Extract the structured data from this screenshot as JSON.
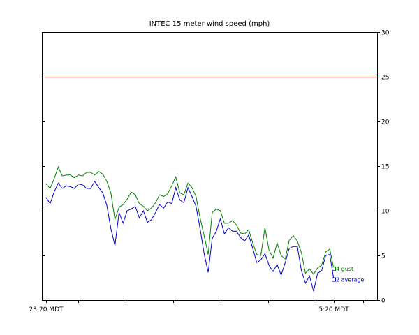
{
  "chart_data": {
    "type": "line",
    "title": "INTEC 15 meter wind speed (mph)",
    "ylim": [
      0,
      30
    ],
    "yticks": [
      "0",
      "5",
      "10",
      "15",
      "20",
      "25",
      "30"
    ],
    "x_tick_labels": [
      "23:20 MDT",
      "5:20 MDT"
    ],
    "threshold": {
      "value": 25,
      "color": "#cc0000"
    },
    "grid": false,
    "series": [
      {
        "name": "gust",
        "end_label": "4 gust",
        "color": "#008000",
        "values": [
          13.0,
          12.5,
          13.6,
          14.9,
          13.9,
          14.0,
          14.0,
          13.7,
          14.0,
          13.9,
          14.3,
          14.3,
          14.0,
          14.4,
          14.1,
          13.3,
          12.0,
          9.0,
          10.4,
          10.7,
          11.3,
          12.1,
          11.8,
          10.8,
          10.5,
          10.0,
          10.3,
          10.9,
          11.8,
          11.6,
          11.9,
          12.8,
          13.8,
          12.0,
          11.8,
          13.1,
          12.6,
          11.6,
          9.2,
          7.2,
          5.1,
          9.8,
          10.2,
          10.0,
          8.6,
          8.6,
          8.9,
          8.4,
          7.5,
          7.4,
          7.9,
          6.4,
          5.1,
          5.0,
          8.1,
          5.6,
          4.7,
          6.4,
          5.0,
          4.6,
          6.7,
          7.2,
          6.6,
          5.3,
          3.0,
          3.5,
          2.9,
          3.6,
          3.9,
          5.4,
          5.7,
          3.5
        ]
      },
      {
        "name": "average",
        "end_label": "2 average",
        "color": "#0000cc",
        "values": [
          11.5,
          10.8,
          12.1,
          13.1,
          12.5,
          12.8,
          12.7,
          12.5,
          13.0,
          12.9,
          12.5,
          12.5,
          13.3,
          12.6,
          12.0,
          10.6,
          8.0,
          6.1,
          9.8,
          8.6,
          10.0,
          10.2,
          10.5,
          9.2,
          10.0,
          8.7,
          9.0,
          9.8,
          10.7,
          10.3,
          11.0,
          10.8,
          12.6,
          11.2,
          10.9,
          12.6,
          11.6,
          10.5,
          8.0,
          5.2,
          3.1,
          6.9,
          7.7,
          9.1,
          7.4,
          8.1,
          7.7,
          7.7,
          7.0,
          6.6,
          7.3,
          5.8,
          4.2,
          4.5,
          5.2,
          3.9,
          3.2,
          4.0,
          2.8,
          4.2,
          5.8,
          6.0,
          6.0,
          3.3,
          1.9,
          2.7,
          1.0,
          3.0,
          3.3,
          5.0,
          5.1,
          2.3
        ]
      }
    ]
  }
}
